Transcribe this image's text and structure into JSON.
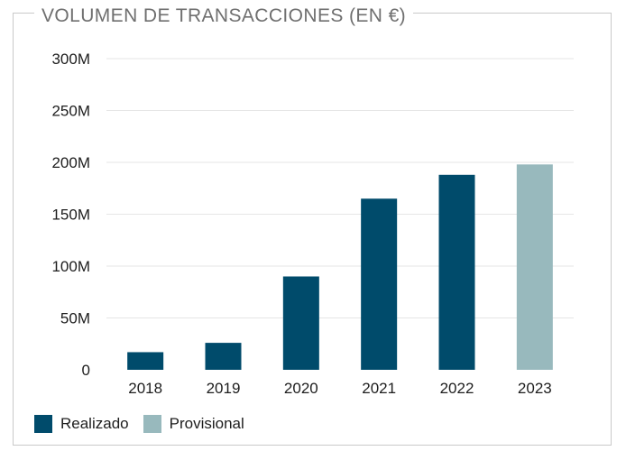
{
  "chart_data": {
    "type": "bar",
    "title": "VOLUMEN DE TRANSACCIONES (EN €)",
    "categories": [
      "2018",
      "2019",
      "2020",
      "2021",
      "2022",
      "2023"
    ],
    "values": [
      17,
      26,
      90,
      165,
      188,
      198
    ],
    "status": [
      "Realizado",
      "Realizado",
      "Realizado",
      "Realizado",
      "Realizado",
      "Provisional"
    ],
    "y_ticks": [
      "0",
      "50M",
      "100M",
      "150M",
      "200M",
      "250M",
      "300M"
    ],
    "ylim": [
      0,
      300
    ],
    "unit": "M",
    "grid": true,
    "legend_position": "bottom-left",
    "legend": [
      {
        "label": "Realizado",
        "color": "#004b6b"
      },
      {
        "label": "Provisional",
        "color": "#98b9bd"
      }
    ],
    "colors": {
      "Realizado": "#004b6b",
      "Provisional": "#98b9bd",
      "grid": "#e6e6e6"
    }
  }
}
